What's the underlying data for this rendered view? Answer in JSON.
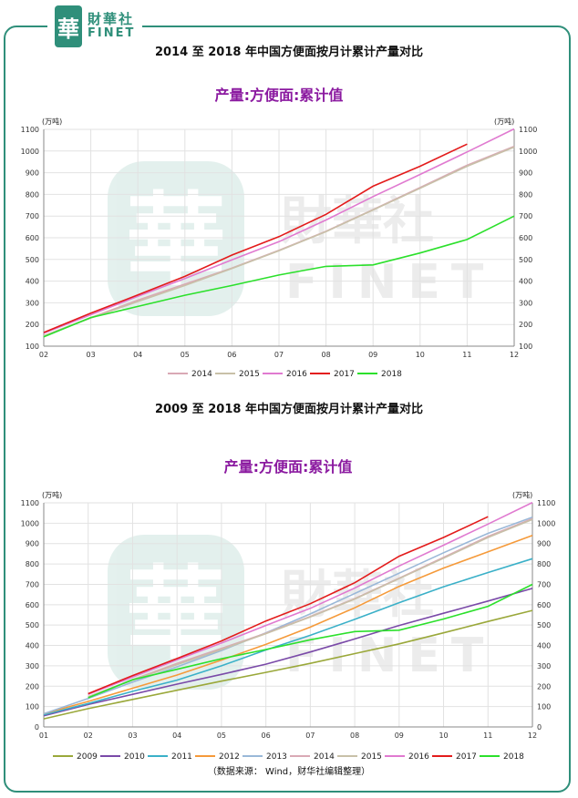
{
  "logo": {
    "cn": "財華社",
    "en": "FINET",
    "mark": "華"
  },
  "watermark": {
    "mark": "華",
    "cn": "財華社",
    "en": "FINET"
  },
  "section1_title": "2014 至 2018 年中国方便面按月计累计产量对比",
  "section2_title": "2009 至 2018 年中国方便面按月计累计产量对比",
  "source": "（数据来源： Wind，财华社编辑整理）",
  "chart_data": [
    {
      "type": "line",
      "title": "产量:方便面:累计值",
      "unit_label": "(万吨)",
      "ylim": [
        100,
        1100
      ],
      "yticks": [
        100,
        200,
        300,
        400,
        500,
        600,
        700,
        800,
        900,
        1000,
        1100
      ],
      "categories": [
        "02",
        "03",
        "04",
        "05",
        "06",
        "07",
        "08",
        "09",
        "10",
        "11",
        "12"
      ],
      "grid": true,
      "legend_position": "bottom",
      "series": [
        {
          "name": "2014",
          "color": "#d9a9b5",
          "values": [
            148,
            232,
            312,
            386,
            460,
            542,
            630,
            730,
            832,
            935,
            1022
          ]
        },
        {
          "name": "2015",
          "color": "#c8c0a8",
          "values": [
            148,
            230,
            306,
            380,
            458,
            540,
            628,
            728,
            828,
            930,
            1018
          ]
        },
        {
          "name": "2016",
          "color": "#e07ad0",
          "values": [
            160,
            245,
            330,
            412,
            498,
            582,
            682,
            790,
            892,
            996,
            1102
          ]
        },
        {
          "name": "2017",
          "color": "#e31b1b",
          "values": [
            163,
            252,
            336,
            422,
            520,
            605,
            708,
            838,
            930,
            1032,
            null
          ]
        },
        {
          "name": "2018",
          "color": "#2be02b",
          "values": [
            143,
            232,
            283,
            335,
            380,
            428,
            468,
            475,
            530,
            592,
            700
          ]
        }
      ]
    },
    {
      "type": "line",
      "title": "产量:方便面:累计值",
      "unit_label": "(万吨)",
      "ylim": [
        0,
        1100
      ],
      "yticks": [
        0,
        100,
        200,
        300,
        400,
        500,
        600,
        700,
        800,
        900,
        1000,
        1100
      ],
      "categories": [
        "01",
        "02",
        "03",
        "04",
        "05",
        "06",
        "07",
        "08",
        "09",
        "10",
        "11",
        "12"
      ],
      "grid": true,
      "legend_position": "bottom",
      "series": [
        {
          "name": "2009",
          "color": "#9aa83a",
          "values": [
            40,
            90,
            135,
            180,
            225,
            268,
            312,
            360,
            408,
            462,
            518,
            572
          ]
        },
        {
          "name": "2010",
          "color": "#7a4aa8",
          "values": [
            55,
            110,
            160,
            210,
            258,
            308,
            368,
            432,
            498,
            558,
            618,
            680
          ]
        },
        {
          "name": "2011",
          "color": "#3ab0c8",
          "values": [
            60,
            115,
            175,
            230,
            300,
            378,
            450,
            528,
            610,
            688,
            758,
            826
          ]
        },
        {
          "name": "2012",
          "color": "#f59a3a",
          "values": [
            65,
            125,
            190,
            255,
            328,
            405,
            490,
            585,
            690,
            780,
            860,
            940
          ]
        },
        {
          "name": "2013",
          "color": "#9ab8d8",
          "values": [
            65,
            140,
            220,
            295,
            375,
            462,
            555,
            655,
            755,
            855,
            950,
            1030
          ]
        },
        {
          "name": "2014",
          "color": "#d9a9b5",
          "values": [
            null,
            148,
            232,
            312,
            386,
            460,
            542,
            630,
            730,
            832,
            935,
            1022
          ]
        },
        {
          "name": "2015",
          "color": "#c8c0a8",
          "values": [
            null,
            148,
            230,
            306,
            380,
            458,
            540,
            628,
            728,
            828,
            930,
            1018
          ]
        },
        {
          "name": "2016",
          "color": "#e07ad0",
          "values": [
            null,
            160,
            245,
            330,
            412,
            498,
            582,
            682,
            790,
            892,
            996,
            1102
          ]
        },
        {
          "name": "2017",
          "color": "#e31b1b",
          "values": [
            null,
            163,
            252,
            336,
            422,
            520,
            605,
            708,
            838,
            930,
            1032,
            null
          ]
        },
        {
          "name": "2018",
          "color": "#2be02b",
          "values": [
            null,
            143,
            232,
            283,
            335,
            380,
            428,
            468,
            475,
            530,
            592,
            700
          ]
        }
      ]
    }
  ]
}
